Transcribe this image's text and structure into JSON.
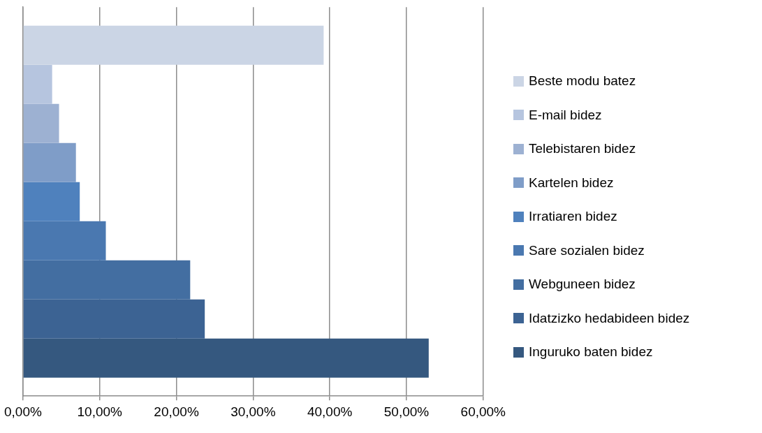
{
  "chart_data": {
    "type": "bar",
    "orientation": "horizontal",
    "categories": [
      null
    ],
    "series": [
      {
        "name": "Beste modu batez",
        "color": "#cbd5e5",
        "values": [
          39.2
        ]
      },
      {
        "name": "E-mail bidez",
        "color": "#b6c5df",
        "values": [
          3.8
        ]
      },
      {
        "name": "Telebistaren bidez",
        "color": "#9db1d2",
        "values": [
          4.7
        ]
      },
      {
        "name": "Kartelen bidez",
        "color": "#7f9dc8",
        "values": [
          6.9
        ]
      },
      {
        "name": "Irratiaren bidez",
        "color": "#4f81bd",
        "values": [
          7.4
        ]
      },
      {
        "name": "Sare sozialen bidez",
        "color": "#4a78b0",
        "values": [
          10.8
        ]
      },
      {
        "name": "Webguneen bidez",
        "color": "#436ea1",
        "values": [
          21.8
        ]
      },
      {
        "name": "Idatzizko hedabideen bidez",
        "color": "#3c6393",
        "values": [
          23.7
        ]
      },
      {
        "name": "Inguruko baten bidez",
        "color": "#35587f",
        "values": [
          52.9
        ]
      }
    ],
    "xlim": [
      0,
      60
    ],
    "xticks": [
      {
        "value": 0,
        "label": "0,00%"
      },
      {
        "value": 10,
        "label": "10,00%"
      },
      {
        "value": 20,
        "label": "20,00%"
      },
      {
        "value": 30,
        "label": "30,00%"
      },
      {
        "value": 40,
        "label": "40,00%"
      },
      {
        "value": 50,
        "label": "50,00%"
      },
      {
        "value": 60,
        "label": "60,00%"
      }
    ],
    "grid": "x",
    "legend": "right"
  }
}
